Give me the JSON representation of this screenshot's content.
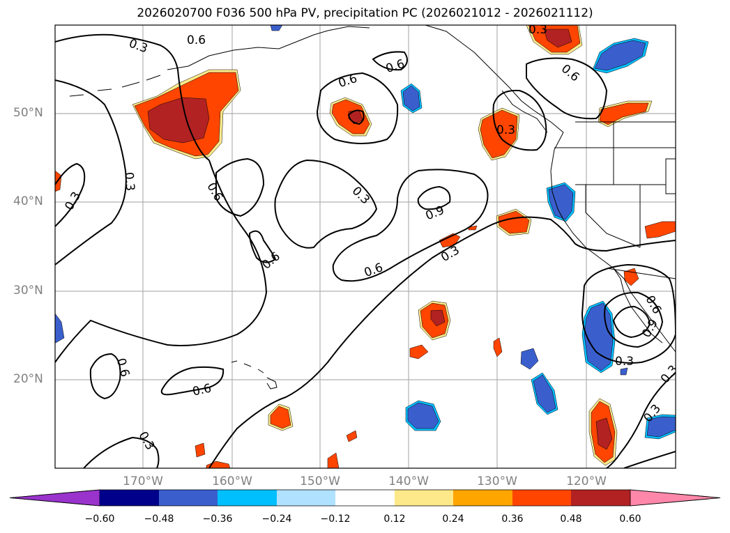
{
  "title": "2026020700 F036 500 hPa PV, precipitation PC (2026021012 - 2026021112)",
  "lat_labels": [
    "50°N",
    "40°N",
    "30°N",
    "20°N"
  ],
  "lon_labels": [
    "170°W",
    "160°W",
    "150°W",
    "140°W",
    "130°W",
    "120°W"
  ],
  "contour_labels": [
    "0.3",
    "0.6",
    "0.9"
  ],
  "colorbar": {
    "colors": [
      "#9933cc",
      "#00008b",
      "#3a5fcd",
      "#00bfff",
      "#b0e2ff",
      "#ffffff",
      "#fde98a",
      "#ffa500",
      "#ff4500",
      "#b22222",
      "#ff88aa"
    ],
    "ticks": [
      "−0.60",
      "−0.48",
      "−0.36",
      "−0.24",
      "−0.12",
      "0.12",
      "0.24",
      "0.36",
      "0.48",
      "0.60"
    ]
  }
}
